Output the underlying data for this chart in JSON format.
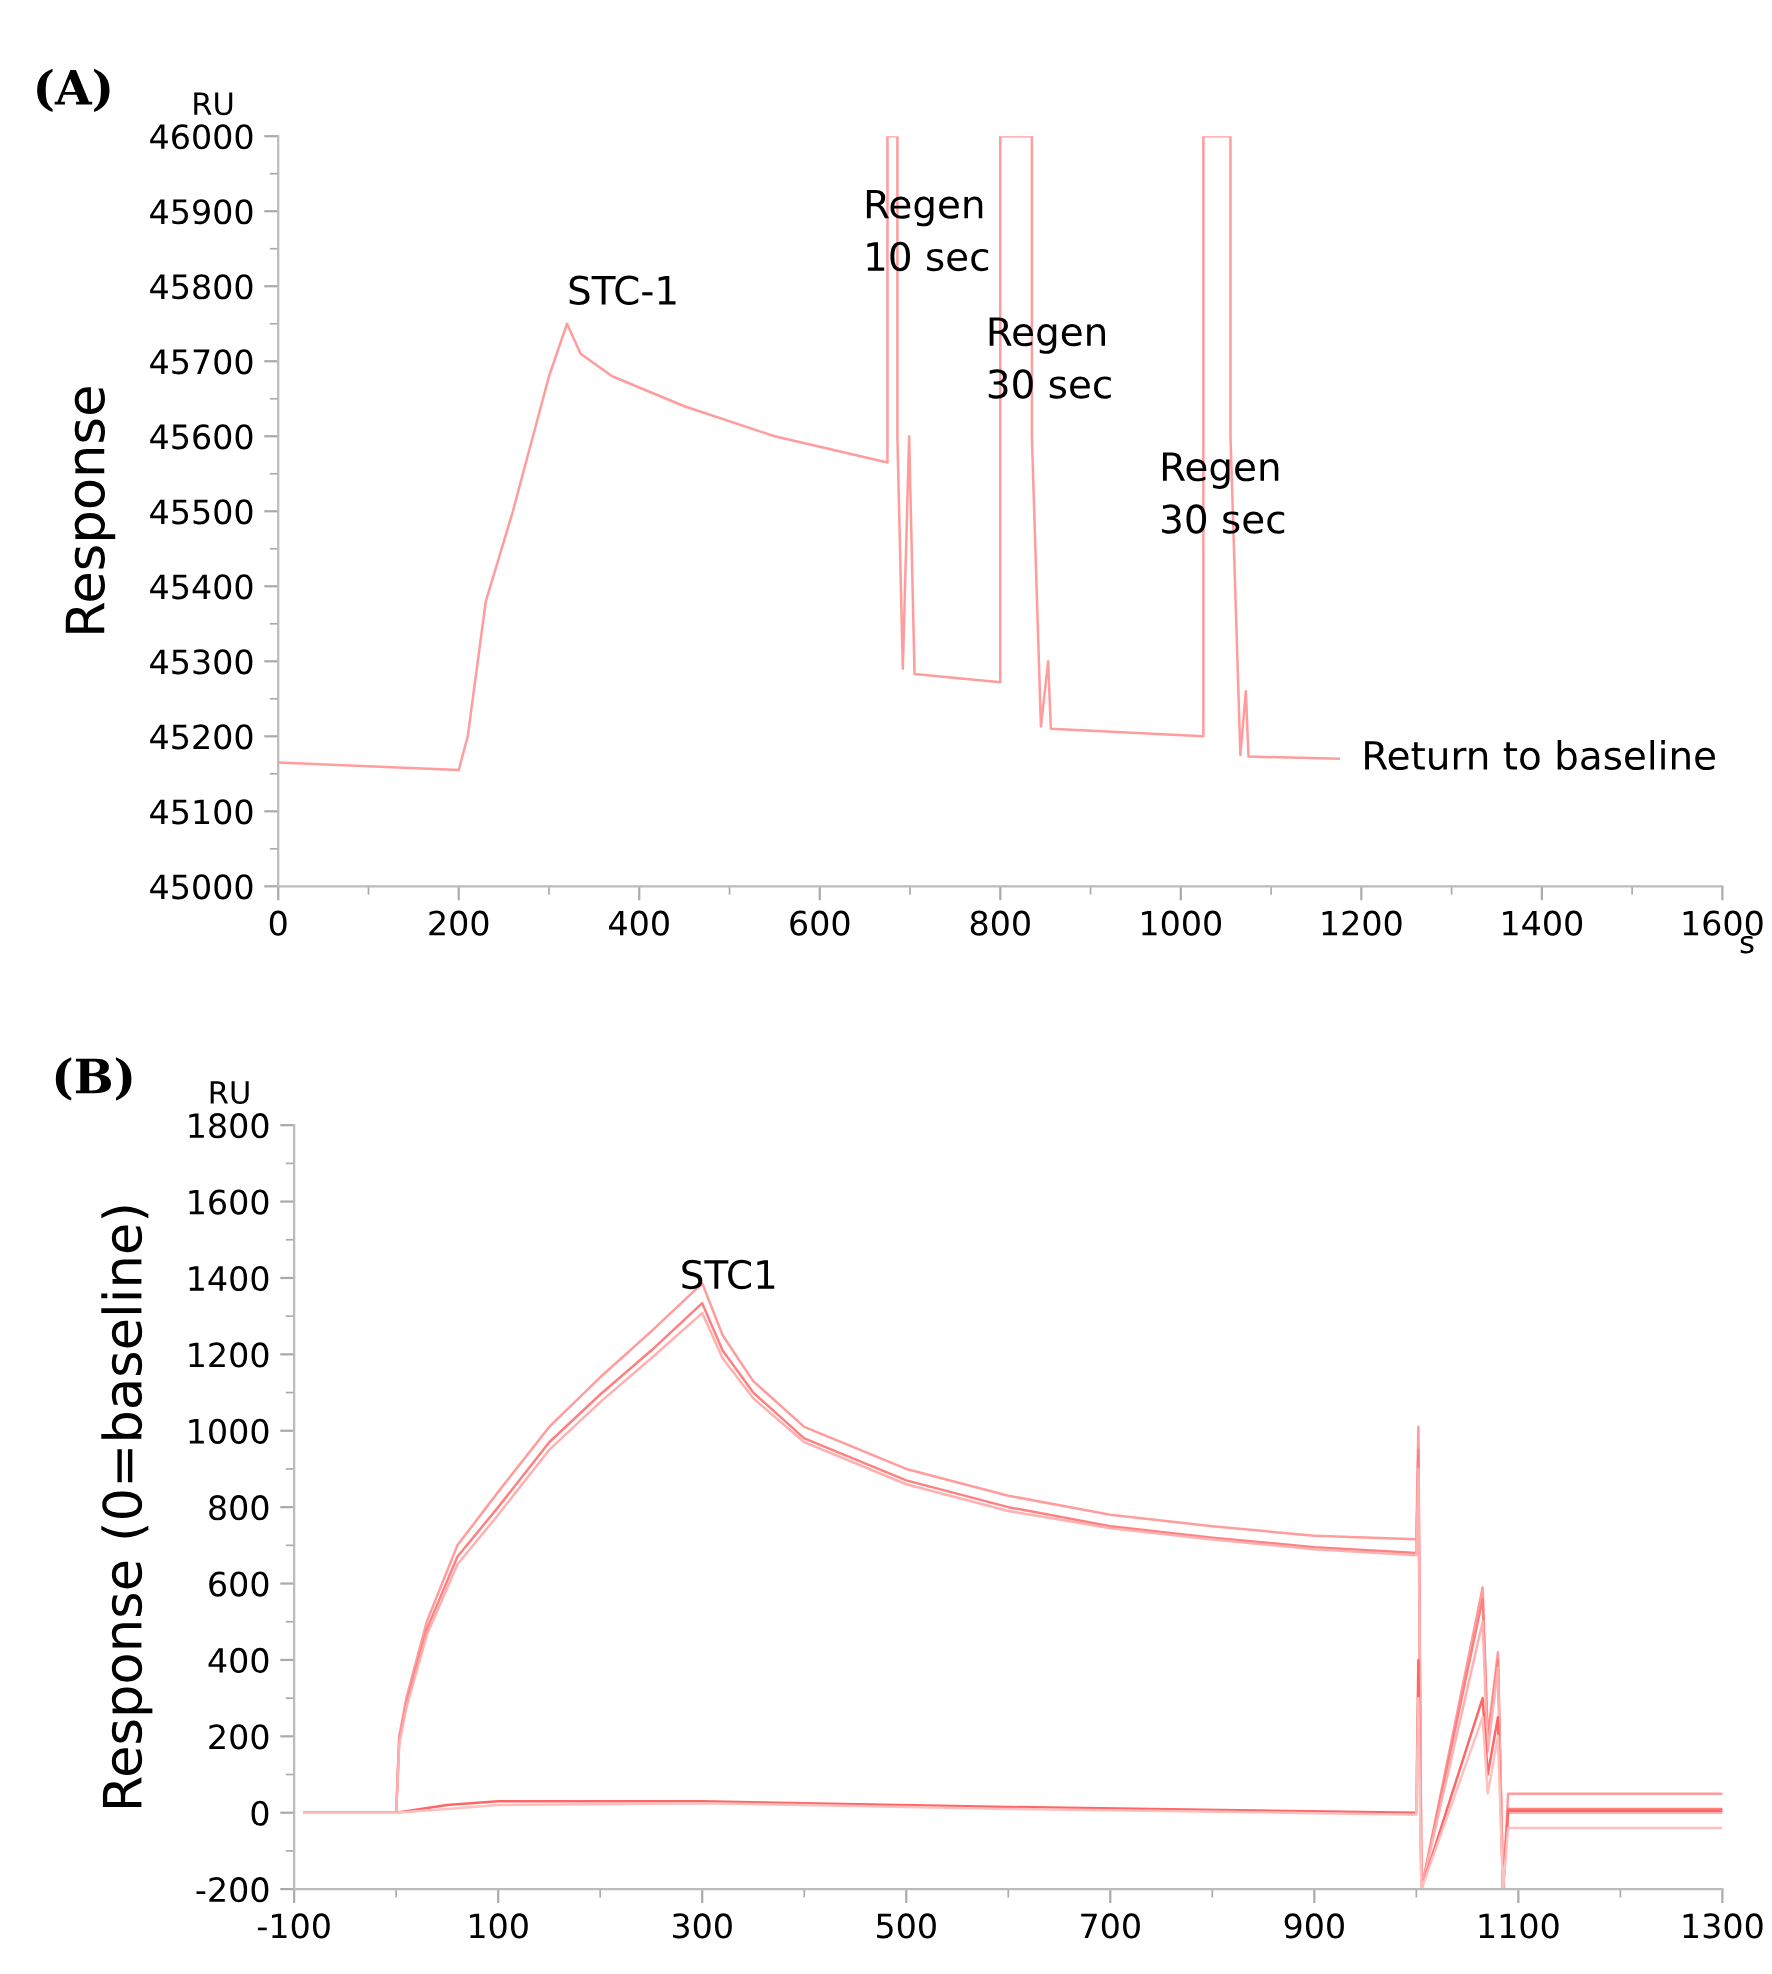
{
  "chart_data": [
    {
      "type": "line",
      "title": "(A)",
      "ylabel": "Response",
      "xlabel": "s",
      "xlim": [
        0,
        1600
      ],
      "ylim": [
        45000,
        46000
      ],
      "xticks": [
        0,
        200,
        400,
        600,
        800,
        1000,
        1200,
        1400,
        1600
      ],
      "yticks": [
        45000,
        45100,
        45200,
        45300,
        45400,
        45500,
        45600,
        45700,
        45800,
        45900,
        46000
      ],
      "grid": false,
      "legend": false,
      "marker": "none",
      "line_style": "solid",
      "annotations": [
        "RU",
        "STC-1",
        "Regen\n10 sec",
        "Regen\n30 sec",
        "Regen\n30 sec",
        "Return to baseline"
      ],
      "series": [
        {
          "color": "#ff9c9c",
          "x": [
            0,
            200,
            210,
            230,
            260,
            300,
            320,
            335,
            370,
            450,
            550,
            675,
            675,
            686,
            686,
            692,
            699,
            705,
            800,
            800,
            835,
            835,
            845,
            853,
            856,
            1025,
            1025,
            1055,
            1055,
            1066,
            1072,
            1075,
            1175
          ],
          "values": [
            45165,
            45155,
            45200,
            45380,
            45500,
            45680,
            45750,
            45710,
            45680,
            45640,
            45600,
            45565,
            46000,
            46000,
            45600,
            45290,
            45600,
            45283,
            45272,
            46000,
            46000,
            45600,
            45213,
            45300,
            45210,
            45200,
            46000,
            46000,
            45600,
            45175,
            45260,
            45173,
            45170
          ]
        }
      ]
    },
    {
      "type": "line",
      "title": "(B)",
      "ylabel": "Response (0=baseline)",
      "xlim": [
        -100,
        1300
      ],
      "ylim": [
        -200,
        1800
      ],
      "xticks": [
        -100,
        100,
        300,
        500,
        700,
        900,
        1100,
        1300
      ],
      "yticks": [
        -200,
        0,
        200,
        400,
        600,
        800,
        1000,
        1200,
        1400,
        1600,
        1800
      ],
      "grid": false,
      "legend": false,
      "marker": "none",
      "line_style": "solid",
      "annotations": [
        "RU",
        "STC1"
      ],
      "series": [
        {
          "color": "#ff9c9c",
          "x": [
            -90,
            0,
            3,
            10,
            30,
            60,
            100,
            150,
            200,
            250,
            300,
            320,
            350,
            400,
            500,
            600,
            700,
            800,
            900,
            1000,
            1002,
            1005,
            1065,
            1070,
            1080,
            1085,
            1090,
            1300
          ],
          "values": [
            0,
            0,
            200,
            300,
            500,
            700,
            840,
            1010,
            1140,
            1260,
            1386,
            1250,
            1130,
            1010,
            900,
            830,
            780,
            750,
            725,
            716,
            1010,
            -200,
            590,
            200,
            420,
            -200,
            50,
            50
          ]
        },
        {
          "color": "#ff8080",
          "x": [
            -90,
            0,
            3,
            10,
            30,
            60,
            100,
            150,
            200,
            250,
            300,
            320,
            350,
            400,
            500,
            600,
            700,
            800,
            900,
            1000,
            1002,
            1005,
            1065,
            1070,
            1080,
            1085,
            1090,
            1300
          ],
          "values": [
            0,
            0,
            190,
            285,
            480,
            670,
            800,
            970,
            1095,
            1210,
            1334,
            1210,
            1100,
            980,
            870,
            800,
            750,
            720,
            695,
            680,
            950,
            -200,
            560,
            180,
            400,
            -200,
            10,
            10
          ]
        },
        {
          "color": "#ffb0b0",
          "x": [
            -90,
            0,
            3,
            10,
            30,
            60,
            100,
            150,
            200,
            250,
            300,
            320,
            350,
            400,
            500,
            600,
            700,
            800,
            900,
            1000,
            1002,
            1005,
            1065,
            1070,
            1080,
            1085,
            1090,
            1300
          ],
          "values": [
            0,
            0,
            180,
            275,
            465,
            650,
            780,
            950,
            1075,
            1190,
            1308,
            1190,
            1085,
            970,
            860,
            790,
            745,
            715,
            690,
            674,
            900,
            -200,
            500,
            160,
            380,
            -200,
            0,
            0
          ]
        },
        {
          "color": "#ff6666",
          "x": [
            -90,
            0,
            50,
            100,
            300,
            600,
            1000,
            1002,
            1005,
            1065,
            1070,
            1080,
            1085,
            1090,
            1300
          ],
          "values": [
            0,
            0,
            20,
            30,
            30,
            15,
            0,
            400,
            -200,
            300,
            100,
            250,
            -200,
            5,
            5
          ]
        },
        {
          "color": "#ffc0c0",
          "x": [
            -90,
            0,
            50,
            100,
            300,
            600,
            1000,
            1002,
            1005,
            1065,
            1070,
            1080,
            1085,
            1090,
            1300
          ],
          "values": [
            0,
            0,
            10,
            20,
            25,
            10,
            -5,
            300,
            -200,
            250,
            50,
            200,
            -200,
            -40,
            -40
          ]
        }
      ]
    }
  ]
}
